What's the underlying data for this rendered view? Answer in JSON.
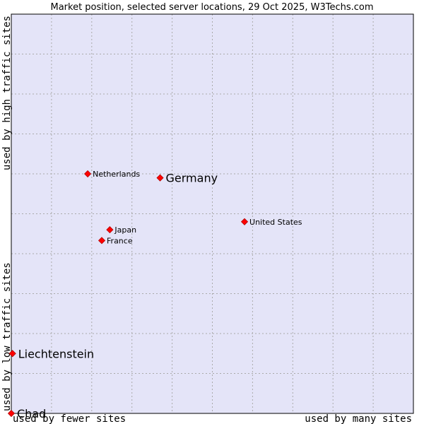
{
  "chart_data": {
    "type": "scatter",
    "title": "Market position, selected server locations, 29 Oct 2025, W3Techs.com",
    "xlabel_low": "used by fewer sites",
    "xlabel_high": "used by many sites",
    "ylabel_low": "used by low traffic sites",
    "ylabel_high": "used by high traffic sites",
    "xlim": [
      0,
      100
    ],
    "ylim": [
      0,
      100
    ],
    "grid": true,
    "colors": {
      "plot_background": "#e4e4f8",
      "grid": "#aaaaaa",
      "point": "#ff0000",
      "point_stroke": "#b00000"
    },
    "points": [
      {
        "name": "Netherlands",
        "x": 19,
        "y": 60,
        "emphasis": "normal"
      },
      {
        "name": "Germany",
        "x": 37,
        "y": 59,
        "emphasis": "large"
      },
      {
        "name": "United States",
        "x": 58,
        "y": 48,
        "emphasis": "normal"
      },
      {
        "name": "Japan",
        "x": 24.5,
        "y": 46,
        "emphasis": "normal"
      },
      {
        "name": "France",
        "x": 22.5,
        "y": 43.3,
        "emphasis": "normal"
      },
      {
        "name": "Liechtenstein",
        "x": 0.3,
        "y": 15,
        "emphasis": "large"
      },
      {
        "name": "Chad",
        "x": 0,
        "y": 0,
        "emphasis": "large"
      }
    ]
  }
}
